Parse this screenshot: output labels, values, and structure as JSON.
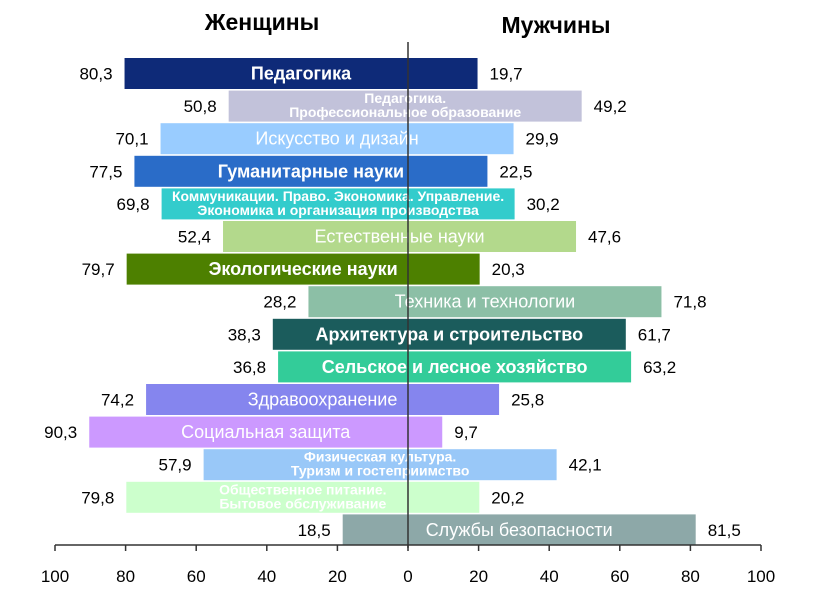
{
  "chart_data": {
    "type": "bar",
    "orientation": "horizontal-diverging",
    "left_title": "Женщины",
    "right_title": "Мужчины",
    "categories": [
      [
        "Педагогика"
      ],
      [
        "Педагогика.",
        "Профессиональное образование"
      ],
      [
        "Искусство и дизайн"
      ],
      [
        "Гуманитарные науки"
      ],
      [
        "Коммуникации. Право. Экономика. Управление.",
        "Экономика и организация производства"
      ],
      [
        "Естественные науки"
      ],
      [
        "Экологические науки"
      ],
      [
        "Техника и технологии"
      ],
      [
        "Архитектура и строительство"
      ],
      [
        "Сельское и лесное хозяйство"
      ],
      [
        "Здравоохранение"
      ],
      [
        "Социальная защита"
      ],
      [
        "Физическая культура.",
        "Туризм и гостеприимство"
      ],
      [
        "Общественное питание.",
        "Бытовое обслуживание"
      ],
      [
        "Службы безопасности"
      ]
    ],
    "series": [
      {
        "name": "Женщины",
        "values": [
          80.3,
          50.8,
          70.1,
          77.5,
          69.8,
          52.4,
          79.7,
          28.2,
          38.3,
          36.8,
          74.2,
          90.3,
          57.9,
          79.8,
          18.5
        ],
        "labels": [
          "80,3",
          "50,8",
          "70,1",
          "77,5",
          "69,8",
          "52,4",
          "79,7",
          "28,2",
          "38,3",
          "36,8",
          "74,2",
          "90,3",
          "57,9",
          "79,8",
          "18,5"
        ]
      },
      {
        "name": "Мужчины",
        "values": [
          19.7,
          49.2,
          29.9,
          22.5,
          30.2,
          47.6,
          20.3,
          71.8,
          61.7,
          63.2,
          25.8,
          9.7,
          42.1,
          20.2,
          81.5
        ],
        "labels": [
          "19,7",
          "49,2",
          "29,9",
          "22,5",
          "30,2",
          "47,6",
          "20,3",
          "71,8",
          "61,7",
          "63,2",
          "25,8",
          "9,7",
          "42,1",
          "20,2",
          "81,5"
        ]
      }
    ],
    "colors": [
      "#0e2a78",
      "#c2c2da",
      "#99ccff",
      "#2a6cc8",
      "#33cccc",
      "#b3d98c",
      "#4d8000",
      "#8cbfa6",
      "#1b5c5c",
      "#33cc99",
      "#8585ee",
      "#cc99ff",
      "#99c8f8",
      "#ccffcc",
      "#8da8a8"
    ],
    "xlim": [
      -100,
      100
    ],
    "xticks": [
      "100",
      "80",
      "60",
      "40",
      "20",
      "0",
      "20",
      "40",
      "60",
      "80",
      "100"
    ],
    "grid": false,
    "legend": "none"
  }
}
